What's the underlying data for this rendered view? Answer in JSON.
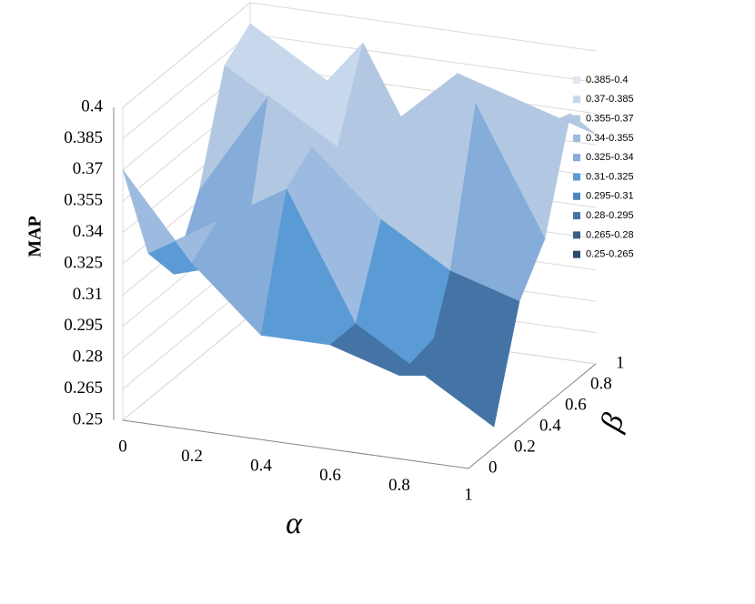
{
  "chart_data": {
    "type": "surface",
    "zlabel": "MAP",
    "xlabel": "α",
    "ylabel": "β",
    "x": [
      0,
      0.2,
      0.4,
      0.6,
      0.8,
      1
    ],
    "y": [
      0,
      0.2,
      0.4,
      0.6,
      0.8,
      1
    ],
    "xticks": [
      0,
      0.2,
      0.4,
      0.6,
      0.8,
      1
    ],
    "yticks": [
      0,
      0.2,
      0.4,
      0.6,
      0.8,
      1
    ],
    "zlim": [
      0.25,
      0.4
    ],
    "zticks": [
      0.25,
      0.265,
      0.28,
      0.295,
      0.31,
      0.325,
      0.34,
      0.355,
      0.37,
      0.385,
      0.4
    ],
    "values": [
      [
        0.37,
        0.33,
        0.3,
        0.3,
        0.29,
        0.33
      ],
      [
        0.32,
        0.34,
        0.36,
        0.3,
        0.28,
        0.26
      ],
      [
        0.3,
        0.31,
        0.37,
        0.34,
        0.32,
        0.31
      ],
      [
        0.33,
        0.38,
        0.36,
        0.37,
        0.39,
        0.33
      ],
      [
        0.38,
        0.36,
        0.4,
        0.34,
        0.36,
        0.38
      ],
      [
        0.39,
        0.37,
        0.35,
        0.38,
        0.37,
        0.36
      ]
    ],
    "legend": [
      {
        "label": "0.385-0.4",
        "color": "#dde8f5"
      },
      {
        "label": "0.37-0.385",
        "color": "#c7d8ec"
      },
      {
        "label": "0.355-0.37",
        "color": "#b2c8e2"
      },
      {
        "label": "0.34-0.355",
        "color": "#9dbbe0"
      },
      {
        "label": "0.325-0.34",
        "color": "#86acd9"
      },
      {
        "label": "0.31-0.325",
        "color": "#5b9bd5"
      },
      {
        "label": "0.295-0.31",
        "color": "#4f86c0"
      },
      {
        "label": "0.28-0.295",
        "color": "#4474a6"
      },
      {
        "label": "0.265-0.28",
        "color": "#3a6188"
      },
      {
        "label": "0.25-0.265",
        "color": "#2e4b6a"
      }
    ],
    "grid": true
  }
}
